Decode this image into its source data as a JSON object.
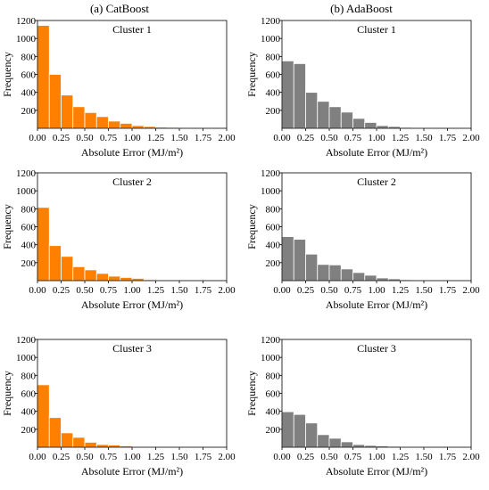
{
  "columns": [
    {
      "title": "(a) CatBoost"
    },
    {
      "title": "(b) AdaBoost"
    }
  ],
  "chart_data": [
    {
      "type": "bar",
      "column": 0,
      "title": "Cluster 1",
      "xlabel": "Absolute Error (MJ/m²)",
      "ylabel": "Frequency",
      "xlim": [
        0,
        2.0
      ],
      "ylim": [
        0,
        1200
      ],
      "xticks": [
        "0.00",
        "0.25",
        "0.50",
        "0.75",
        "1.00",
        "1.25",
        "1.50",
        "1.75",
        "2.00"
      ],
      "yticks": [
        "200",
        "400",
        "600",
        "800",
        "1000",
        "1200"
      ],
      "bin_width": 0.125,
      "bin_starts": [
        0,
        0.125,
        0.25,
        0.375,
        0.5,
        0.625,
        0.75,
        0.875,
        1.0,
        1.125,
        1.25,
        1.375,
        1.5,
        1.625
      ],
      "values": [
        1145,
        600,
        370,
        240,
        175,
        130,
        80,
        55,
        30,
        20,
        12,
        10,
        5,
        3
      ],
      "color": "#ff8000"
    },
    {
      "type": "bar",
      "column": 1,
      "title": "Cluster 1",
      "xlabel": "Absolute Error (MJ/m²)",
      "ylabel": "Frequency",
      "xlim": [
        0,
        2.0
      ],
      "ylim": [
        0,
        1200
      ],
      "xticks": [
        "0.00",
        "0.25",
        "0.50",
        "0.75",
        "1.00",
        "1.25",
        "1.50",
        "1.75",
        "2.00"
      ],
      "yticks": [
        "200",
        "400",
        "600",
        "800",
        "1000",
        "1200"
      ],
      "bin_width": 0.125,
      "bin_starts": [
        0,
        0.125,
        0.25,
        0.375,
        0.5,
        0.625,
        0.75,
        0.875,
        1.0,
        1.125,
        1.25,
        1.375,
        1.5,
        1.625
      ],
      "values": [
        750,
        720,
        400,
        300,
        240,
        180,
        110,
        65,
        30,
        20,
        10,
        5,
        3,
        2
      ],
      "color": "#808080"
    },
    {
      "type": "bar",
      "column": 0,
      "title": "Cluster 2",
      "xlabel": "Absolute Error (MJ/m²)",
      "ylabel": "Frequency",
      "xlim": [
        0,
        2.0
      ],
      "ylim": [
        0,
        1200
      ],
      "xticks": [
        "0.00",
        "0.25",
        "0.50",
        "0.75",
        "1.00",
        "1.25",
        "1.50",
        "1.75",
        "2.00"
      ],
      "yticks": [
        "200",
        "400",
        "600",
        "800",
        "1000",
        "1200"
      ],
      "bin_width": 0.125,
      "bin_starts": [
        0,
        0.125,
        0.25,
        0.375,
        0.5,
        0.625,
        0.75,
        0.875,
        1.0,
        1.125,
        1.25,
        1.375,
        1.5,
        1.625
      ],
      "values": [
        815,
        390,
        270,
        155,
        120,
        80,
        50,
        35,
        25,
        10,
        5,
        5,
        3,
        2
      ],
      "color": "#ff8000"
    },
    {
      "type": "bar",
      "column": 1,
      "title": "Cluster 2",
      "xlabel": "Absolute Error (MJ/m²)",
      "ylabel": "Frequency",
      "xlim": [
        0,
        2.0
      ],
      "ylim": [
        0,
        1200
      ],
      "xticks": [
        "0.00",
        "0.25",
        "0.50",
        "0.75",
        "1.00",
        "1.25",
        "1.50",
        "1.75",
        "2.00"
      ],
      "yticks": [
        "200",
        "400",
        "600",
        "800",
        "1000",
        "1200"
      ],
      "bin_width": 0.125,
      "bin_starts": [
        0,
        0.125,
        0.25,
        0.375,
        0.5,
        0.625,
        0.75,
        0.875,
        1.0,
        1.125,
        1.25,
        1.375,
        1.5,
        1.625
      ],
      "values": [
        490,
        460,
        295,
        180,
        175,
        130,
        90,
        60,
        30,
        20,
        10,
        5,
        3,
        2
      ],
      "color": "#808080"
    },
    {
      "type": "bar",
      "column": 0,
      "title": "Cluster 3",
      "xlabel": "Absolute Error (MJ/m²)",
      "ylabel": "Frequency",
      "xlim": [
        0,
        2.0
      ],
      "ylim": [
        0,
        1200
      ],
      "xticks": [
        "0.00",
        "0.25",
        "0.50",
        "0.75",
        "1.00",
        "1.25",
        "1.50",
        "1.75",
        "2.00"
      ],
      "yticks": [
        "200",
        "400",
        "600",
        "800",
        "1000",
        "1200"
      ],
      "bin_width": 0.125,
      "bin_starts": [
        0,
        0.125,
        0.25,
        0.375,
        0.5,
        0.625,
        0.75,
        0.875,
        1.0,
        1.125,
        1.25,
        1.375,
        1.5,
        1.625
      ],
      "values": [
        695,
        330,
        160,
        110,
        55,
        30,
        25,
        15,
        5,
        3,
        2,
        0,
        0,
        0
      ],
      "color": "#ff8000"
    },
    {
      "type": "bar",
      "column": 1,
      "title": "Cluster 3",
      "xlabel": "Absolute Error (MJ/m²)",
      "ylabel": "Frequency",
      "xlim": [
        0,
        2.0
      ],
      "ylim": [
        0,
        1200
      ],
      "xticks": [
        "0.00",
        "0.25",
        "0.50",
        "0.75",
        "1.00",
        "1.25",
        "1.50",
        "1.75",
        "2.00"
      ],
      "yticks": [
        "200",
        "400",
        "600",
        "800",
        "1000",
        "1200"
      ],
      "bin_width": 0.125,
      "bin_starts": [
        0,
        0.125,
        0.25,
        0.375,
        0.5,
        0.625,
        0.75,
        0.875,
        1.0,
        1.125,
        1.25,
        1.375,
        1.5,
        1.625
      ],
      "values": [
        395,
        365,
        270,
        140,
        100,
        60,
        30,
        20,
        15,
        10,
        5,
        3,
        2,
        2
      ],
      "color": "#808080"
    }
  ]
}
